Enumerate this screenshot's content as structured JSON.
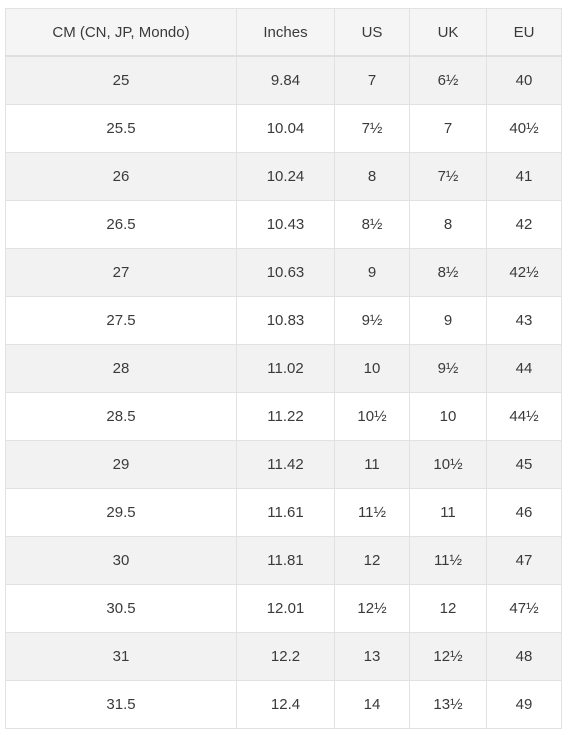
{
  "table": {
    "headers": [
      "CM (CN, JP, Mondo)",
      "Inches",
      "US",
      "UK",
      "EU"
    ],
    "rows": [
      [
        "25",
        "9.84",
        "7",
        "6½",
        "40"
      ],
      [
        "25.5",
        "10.04",
        "7½",
        "7",
        "40½"
      ],
      [
        "26",
        "10.24",
        "8",
        "7½",
        "41"
      ],
      [
        "26.5",
        "10.43",
        "8½",
        "8",
        "42"
      ],
      [
        "27",
        "10.63",
        "9",
        "8½",
        "42½"
      ],
      [
        "27.5",
        "10.83",
        "9½",
        "9",
        "43"
      ],
      [
        "28",
        "11.02",
        "10",
        "9½",
        "44"
      ],
      [
        "28.5",
        "11.22",
        "10½",
        "10",
        "44½"
      ],
      [
        "29",
        "11.42",
        "11",
        "10½",
        "45"
      ],
      [
        "29.5",
        "11.61",
        "11½",
        "11",
        "46"
      ],
      [
        "30",
        "11.81",
        "12",
        "11½",
        "47"
      ],
      [
        "30.5",
        "12.01",
        "12½",
        "12",
        "47½"
      ],
      [
        "31",
        "12.2",
        "13",
        "12½",
        "48"
      ],
      [
        "31.5",
        "12.4",
        "14",
        "13½",
        "49"
      ]
    ]
  },
  "colors": {
    "header_bg": "#f5f5f5",
    "stripe_bg": "#f2f2f2",
    "border": "#e2e2e2",
    "text": "#3a3a3a"
  }
}
